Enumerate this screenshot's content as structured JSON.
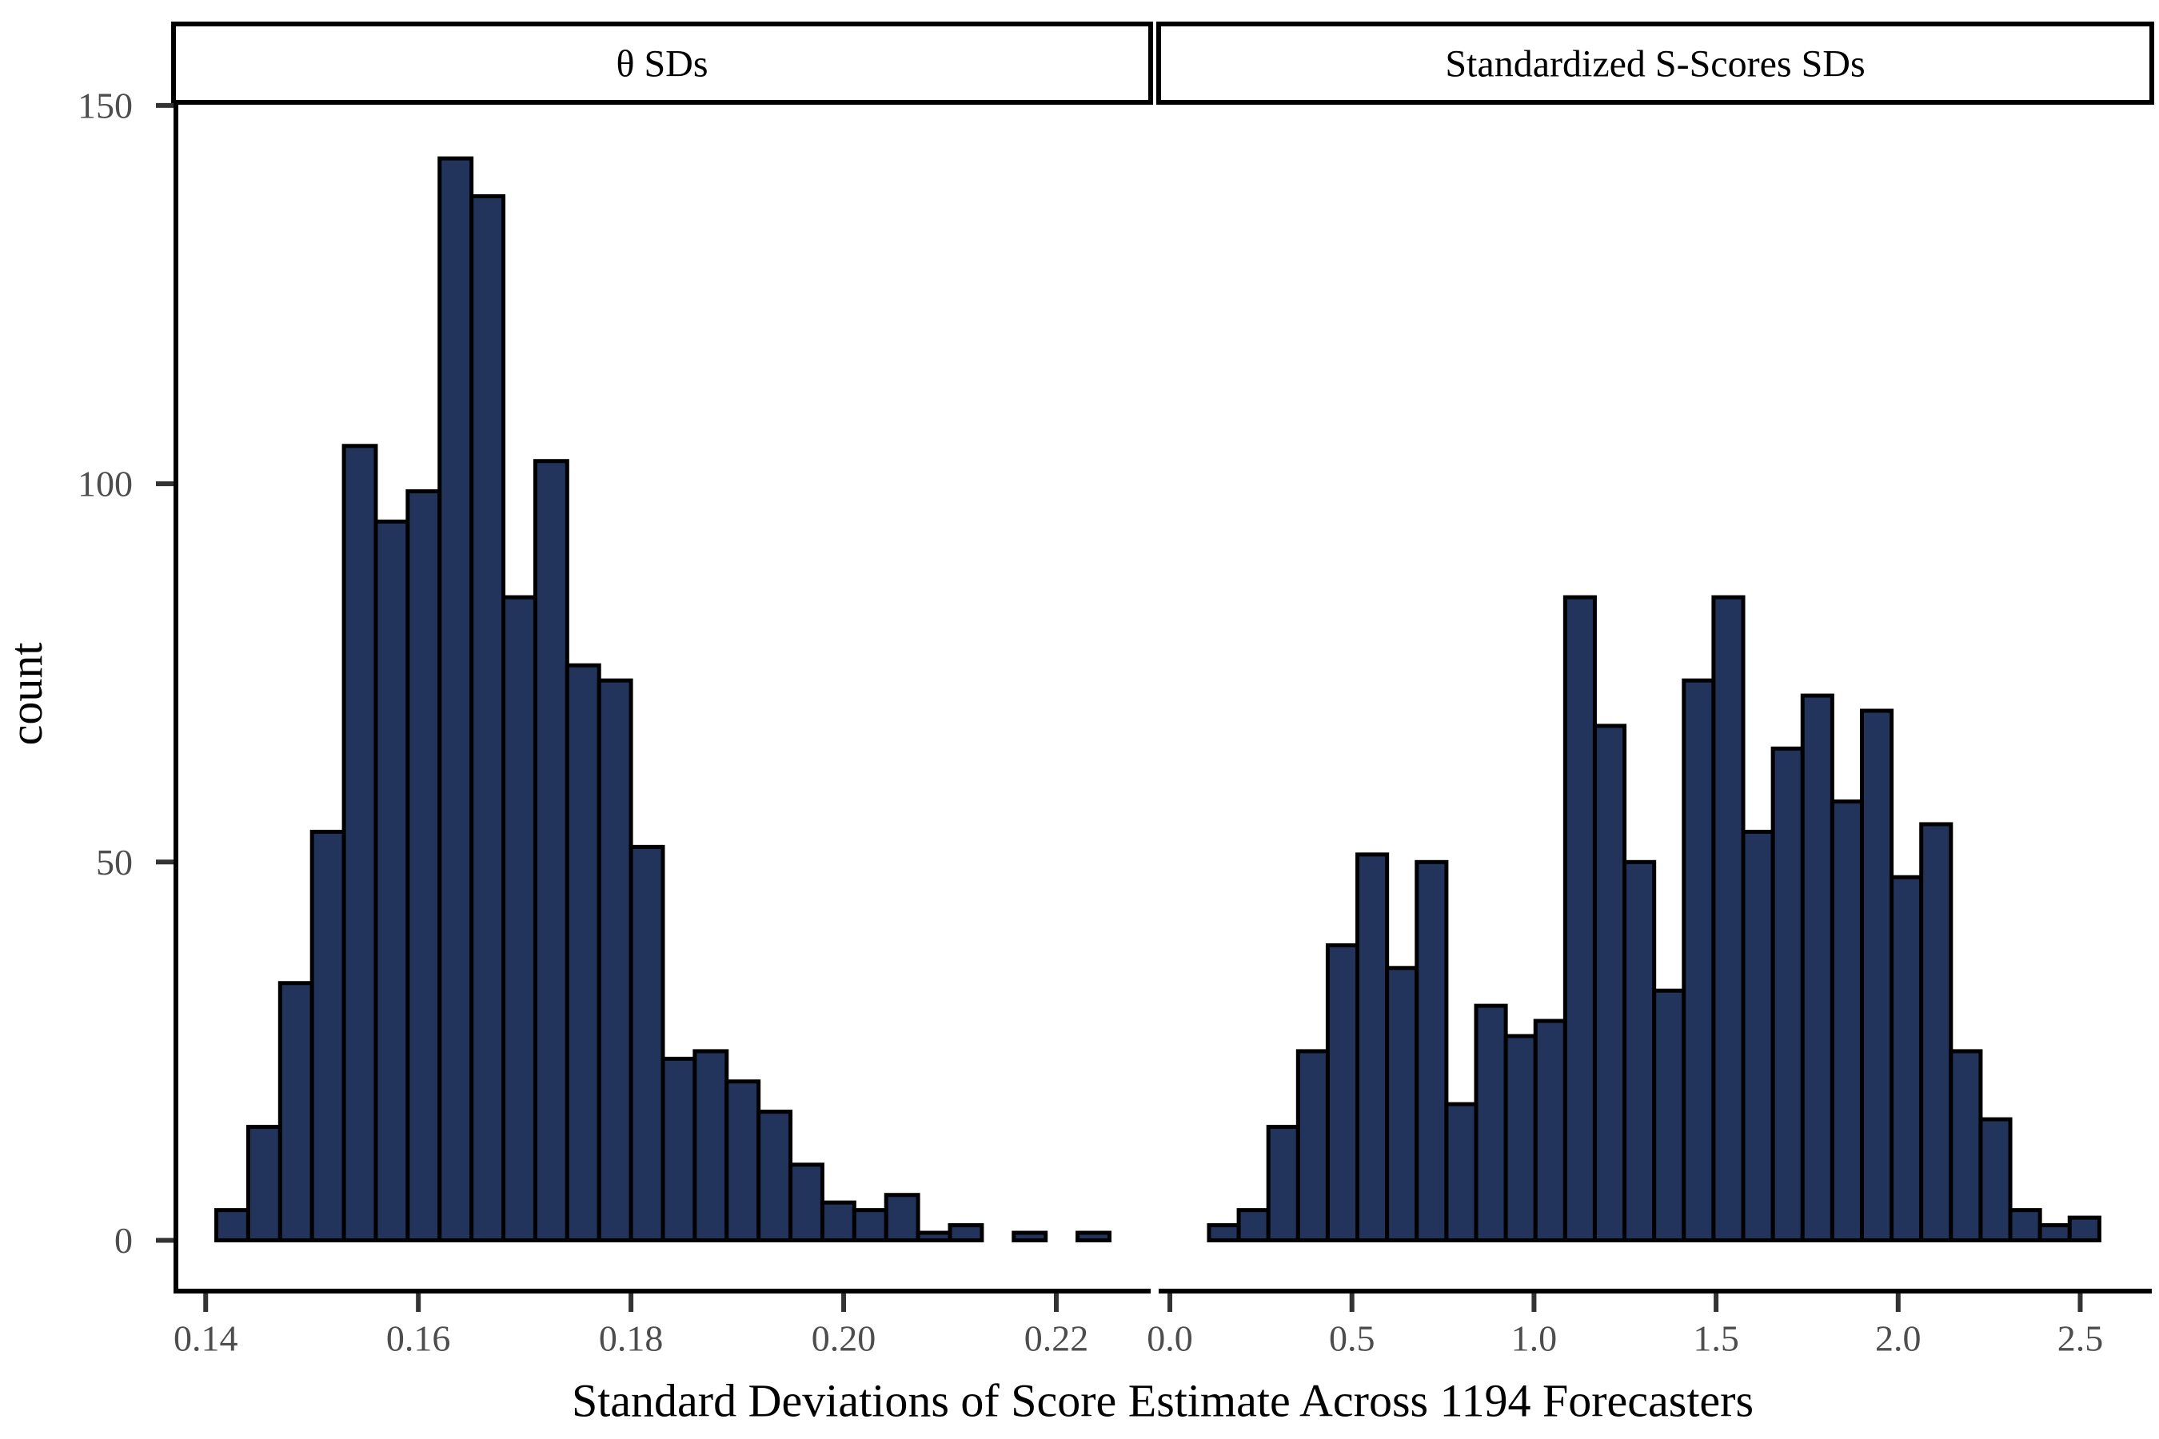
{
  "figure": {
    "x_axis_title": "Standard Deviations of Score Estimate Across 1194 Forecasters",
    "y_axis_title": "count",
    "y_tick_labels": [
      "0",
      "50",
      "100",
      "150"
    ],
    "y_tick_values": [
      0,
      50,
      100,
      150
    ],
    "colors": {
      "background": "#FFFFFF",
      "bar_fill": "#22345C",
      "bar_stroke": "#000000",
      "axis_line": "#000000",
      "tick_mark": "#333333",
      "tick_label": "#4D4D4D",
      "strip_border": "#000000",
      "strip_fill": "#FFFFFF",
      "strip_text": "#000000",
      "axis_title_text": "#000000"
    }
  },
  "chart_data": [
    {
      "type": "bar",
      "subtype": "histogram",
      "facet_label": "θ SDs",
      "title": "θ SDs",
      "xlabel": "Standard Deviations of Score Estimate Across 1194 Forecasters",
      "ylabel": "count",
      "bin_start": 0.141,
      "bin_width": 0.003,
      "counts": [
        4,
        15,
        34,
        54,
        105,
        95,
        99,
        143,
        138,
        85,
        103,
        76,
        74,
        52,
        24,
        25,
        21,
        17,
        10,
        5,
        4,
        6,
        1,
        2,
        0,
        1,
        0,
        1
      ],
      "total_count": 1194,
      "x_ticks": [
        0.14,
        0.16,
        0.18,
        0.2,
        0.22
      ],
      "x_tick_labels": [
        "0.14",
        "0.16",
        "0.18",
        "0.20",
        "0.22"
      ],
      "xlim": [
        0.1372,
        0.22865
      ],
      "ylim": [
        0,
        150
      ],
      "grid": false,
      "legend": false
    },
    {
      "type": "bar",
      "subtype": "histogram",
      "facet_label": "Standardized S-Scores SDs",
      "title": "Standardized S-Scores SDs",
      "xlabel": "Standard Deviations of Score Estimate Across 1194 Forecasters",
      "ylabel": "count",
      "bin_start": 0.1075,
      "bin_width": 0.0815,
      "counts": [
        2,
        4,
        15,
        25,
        39,
        51,
        36,
        50,
        18,
        31,
        27,
        29,
        85,
        68,
        50,
        33,
        74,
        85,
        54,
        65,
        72,
        58,
        70,
        48,
        55,
        25,
        16,
        4,
        2,
        3
      ],
      "total_count": 1194,
      "x_ticks": [
        0.0,
        0.5,
        1.0,
        1.5,
        2.0,
        2.5
      ],
      "x_tick_labels": [
        "0.0",
        "0.5",
        "1.0",
        "1.5",
        "2.0",
        "2.5"
      ],
      "xlim": [
        -0.0242,
        2.69
      ],
      "ylim": [
        0,
        150
      ],
      "grid": false,
      "legend": false
    }
  ]
}
